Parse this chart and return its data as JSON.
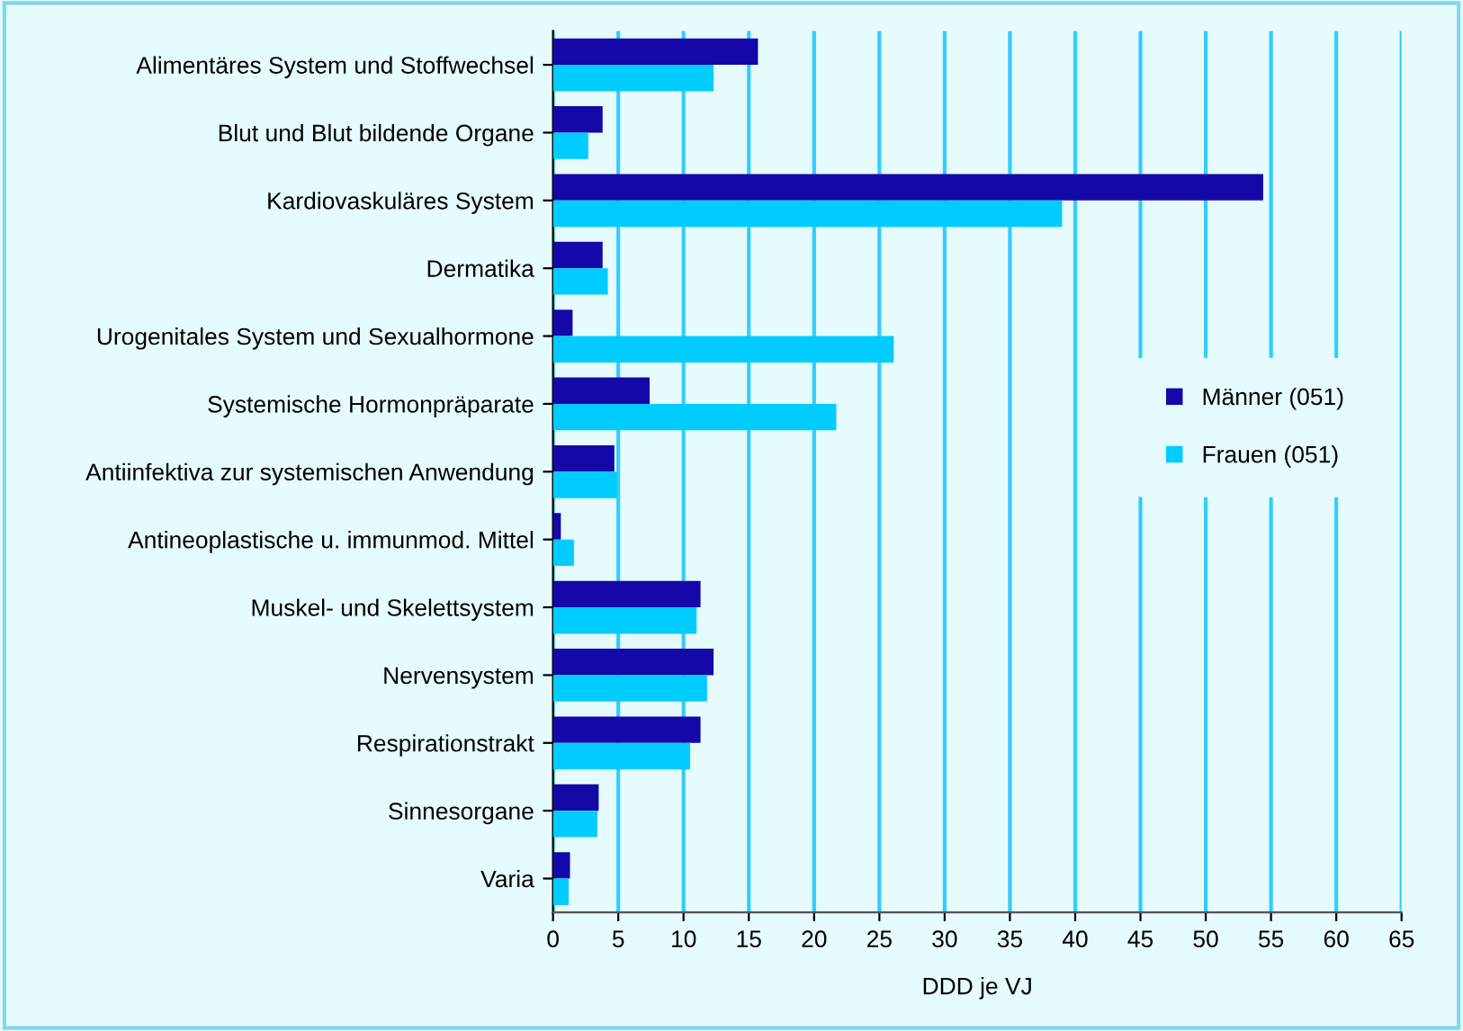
{
  "chart_data": {
    "type": "bar",
    "orientation": "horizontal",
    "xlabel": "DDD je VJ",
    "categories": [
      "Alimentäres System und Stoffwechsel",
      "Blut und Blut bildende Organe",
      "Kardiovaskuläres System",
      "Dermatika",
      "Urogenitales System und Sexualhormone",
      "Systemische Hormonpräparate",
      "Antiinfektiva zur systemischen Anwendung",
      "Antineoplastische u. immunmod. Mittel",
      "Muskel- und Skelettsystem",
      "Nervensystem",
      "Respirationstrakt",
      "Sinnesorgane",
      "Varia"
    ],
    "series": [
      {
        "name": "Männer (051)",
        "color": "#1408a8",
        "values": [
          15.7,
          3.8,
          54.4,
          3.8,
          1.5,
          7.4,
          4.7,
          0.6,
          11.3,
          12.3,
          11.3,
          3.5,
          1.3
        ]
      },
      {
        "name": "Frauen (051)",
        "color": "#00ccff",
        "values": [
          12.3,
          2.7,
          39.0,
          4.2,
          26.1,
          21.7,
          4.9,
          1.6,
          11.0,
          11.8,
          10.5,
          3.4,
          1.2
        ]
      }
    ],
    "xlim": [
      0,
      65
    ],
    "xticks": [
      0,
      5,
      10,
      15,
      20,
      25,
      30,
      35,
      40,
      45,
      50,
      55,
      60,
      65
    ],
    "grid": "x",
    "legend": "center right"
  }
}
